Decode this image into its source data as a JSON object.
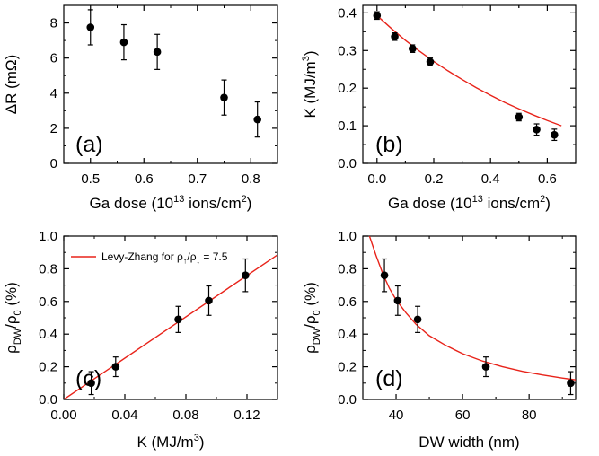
{
  "chart_data": [
    {
      "type": "scatter",
      "panel_label": "(a)",
      "xlabel": "Ga dose (10<sup>13</sup> ions/cm<sup>2</sup>)",
      "ylabel": "ΔR (mΩ)",
      "xlim": [
        0.45,
        0.85
      ],
      "ylim": [
        0,
        9
      ],
      "xticks": [
        0.5,
        0.6,
        0.7,
        0.8
      ],
      "xticklabels": [
        "0.5",
        "0.6",
        "0.7",
        "0.8"
      ],
      "yticks": [
        0,
        2,
        4,
        6,
        8
      ],
      "yticklabels": [
        "0",
        "2",
        "4",
        "6",
        "8"
      ],
      "series": [
        {
          "x": [
            0.5,
            0.5625,
            0.625,
            0.75,
            0.8125
          ],
          "y": [
            7.75,
            6.9,
            6.35,
            3.75,
            2.5
          ],
          "yerr": [
            1.0,
            1.0,
            1.0,
            1.0,
            1.0
          ],
          "color": "#000000"
        }
      ],
      "fit": null,
      "legend": null
    },
    {
      "type": "scatter",
      "panel_label": "(b)",
      "xlabel": "Ga dose (10<sup>13</sup> ions/cm<sup>2</sup>)",
      "ylabel": "K (MJ/m<sup>3</sup>)",
      "xlim": [
        -0.05,
        0.7
      ],
      "ylim": [
        0,
        0.42
      ],
      "xticks": [
        0.0,
        0.2,
        0.4,
        0.6
      ],
      "xticklabels": [
        "0.0",
        "0.2",
        "0.4",
        "0.6"
      ],
      "yticks": [
        0.0,
        0.1,
        0.2,
        0.3,
        0.4
      ],
      "yticklabels": [
        "0.0",
        "0.1",
        "0.2",
        "0.3",
        "0.4"
      ],
      "series": [
        {
          "x": [
            0.0,
            0.0625,
            0.125,
            0.1875,
            0.5,
            0.5625,
            0.625
          ],
          "y": [
            0.393,
            0.337,
            0.305,
            0.27,
            0.123,
            0.09,
            0.076
          ],
          "yerr": [
            0.01,
            0.01,
            0.01,
            0.01,
            0.01,
            0.015,
            0.015
          ],
          "color": "#000000"
        }
      ],
      "fit": {
        "color": "#e8231a",
        "x": [
          0,
          0.05,
          0.1,
          0.15,
          0.2,
          0.25,
          0.3,
          0.35,
          0.4,
          0.45,
          0.5,
          0.55,
          0.6,
          0.65
        ],
        "y": [
          0.393,
          0.359,
          0.327,
          0.298,
          0.271,
          0.246,
          0.223,
          0.201,
          0.181,
          0.162,
          0.145,
          0.129,
          0.114,
          0.1
        ]
      },
      "legend": null
    },
    {
      "type": "scatter",
      "panel_label": "(c)",
      "xlabel": "K (MJ/m<sup>3</sup>)",
      "ylabel": "ρ<sub>DW</sub>/ρ<sub>0</sub> (%)",
      "xlim": [
        0,
        0.14
      ],
      "ylim": [
        0,
        1.0
      ],
      "xticks": [
        0.0,
        0.04,
        0.08,
        0.12
      ],
      "xticklabels": [
        "0.00",
        "0.04",
        "0.08",
        "0.12"
      ],
      "yticks": [
        0.0,
        0.2,
        0.4,
        0.6,
        0.8,
        1.0
      ],
      "yticklabels": [
        "0.0",
        "0.2",
        "0.4",
        "0.6",
        "0.8",
        "1.0"
      ],
      "series": [
        {
          "x": [
            0.018,
            0.034,
            0.075,
            0.095,
            0.119
          ],
          "y": [
            0.1,
            0.2,
            0.49,
            0.605,
            0.76
          ],
          "yerr": [
            0.07,
            0.06,
            0.08,
            0.09,
            0.1
          ],
          "color": "#000000"
        }
      ],
      "fit": {
        "color": "#e8231a",
        "x": [
          0,
          0.14
        ],
        "y": [
          0,
          0.885
        ]
      },
      "legend": {
        "label": "Levy-Zhang for ρ<sub>↑</sub>/ρ<sub>↓</sub> = 7.5",
        "position": "top-left"
      }
    },
    {
      "type": "scatter",
      "panel_label": "(d)",
      "xlabel": "DW width (nm)",
      "ylabel": "ρ<sub>DW</sub>/ρ<sub>0</sub> (%)",
      "xlim": [
        30,
        94
      ],
      "ylim": [
        0,
        1.0
      ],
      "xticks": [
        40,
        60,
        80
      ],
      "xticklabels": [
        "40",
        "60",
        "80"
      ],
      "yticks": [
        0.0,
        0.2,
        0.4,
        0.6,
        0.8,
        1.0
      ],
      "yticklabels": [
        "0.0",
        "0.2",
        "0.4",
        "0.6",
        "0.8",
        "1.0"
      ],
      "series": [
        {
          "x": [
            36.5,
            40.5,
            46.5,
            67,
            92.5
          ],
          "y": [
            0.76,
            0.605,
            0.49,
            0.2,
            0.1
          ],
          "yerr": [
            0.1,
            0.09,
            0.08,
            0.06,
            0.07
          ],
          "color": "#000000"
        }
      ],
      "fit": {
        "color": "#e8231a",
        "x": [
          32,
          34,
          36,
          38,
          40,
          43,
          46,
          50,
          55,
          60,
          66,
          72,
          78,
          84,
          90,
          94
        ],
        "y": [
          1.0,
          0.88,
          0.77,
          0.68,
          0.61,
          0.53,
          0.46,
          0.39,
          0.33,
          0.28,
          0.235,
          0.2,
          0.172,
          0.15,
          0.131,
          0.12
        ]
      },
      "legend": null
    }
  ]
}
